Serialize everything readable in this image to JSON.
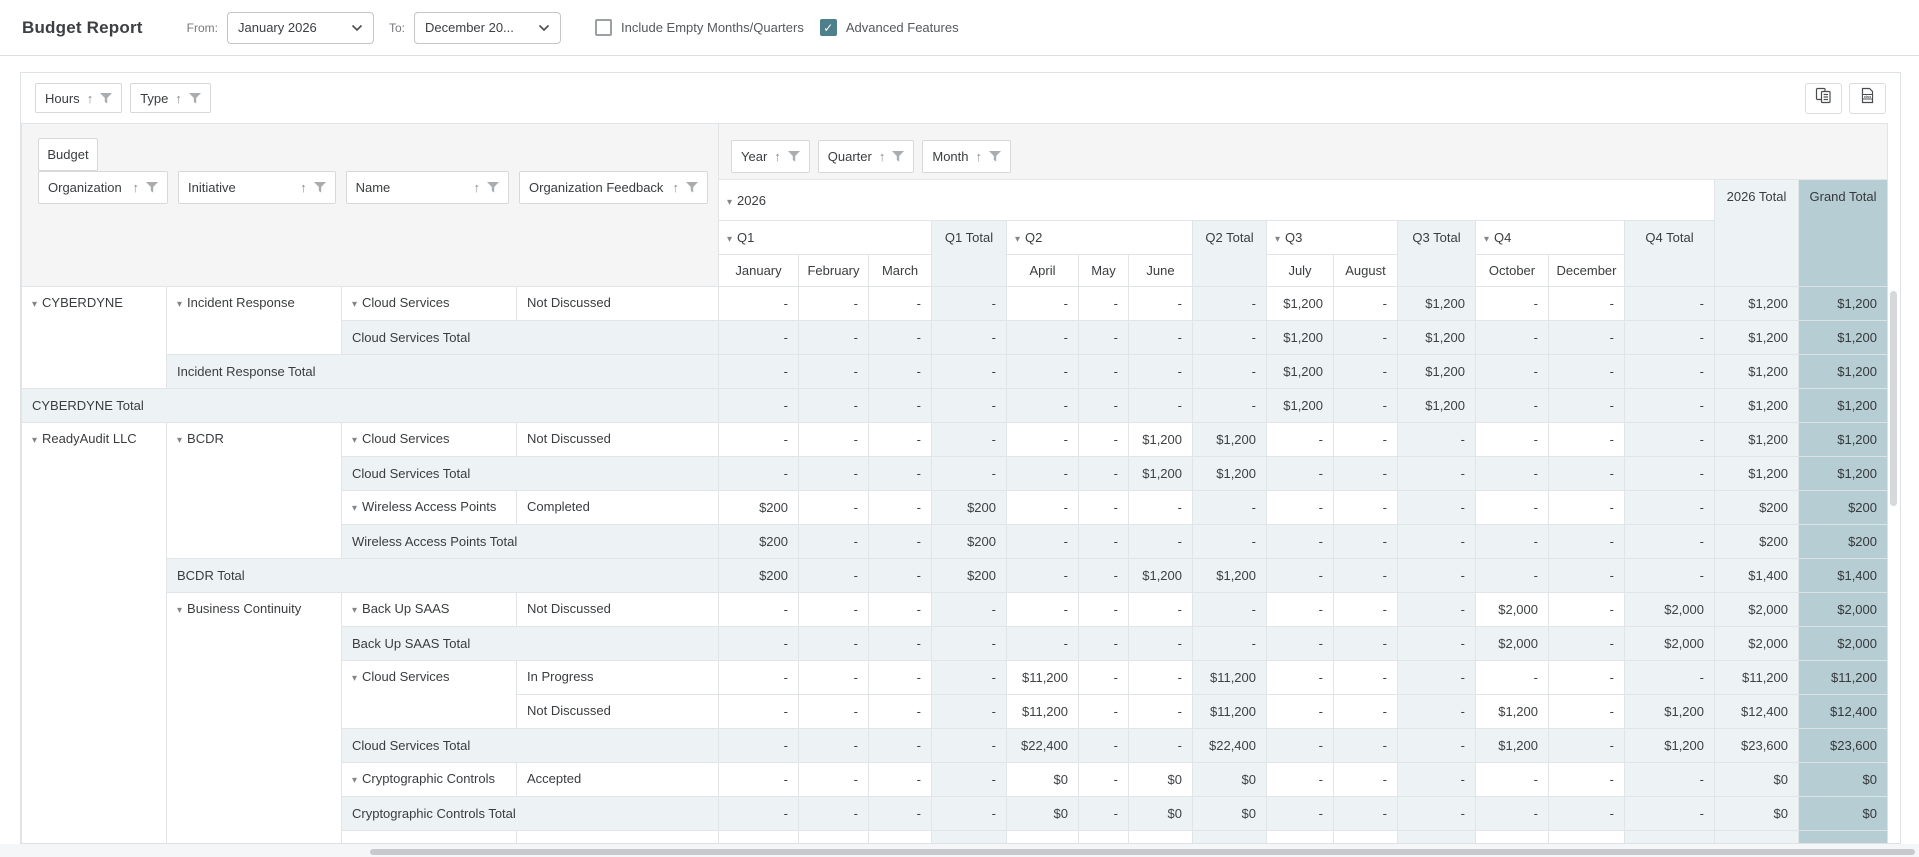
{
  "toolbar": {
    "title": "Budget Report",
    "from_label": "From:",
    "from_value": "January 2026",
    "to_label": "To:",
    "to_value": "December 20...",
    "include_empty_label": "Include Empty Months/Quarters",
    "include_empty_checked": false,
    "advanced_label": "Advanced Features",
    "advanced_checked": true,
    "checkmark": "✓"
  },
  "grid_toolbar": {
    "value_fields": [
      "Hours",
      "Type"
    ],
    "icons": [
      "copy-icon",
      "excel-export-icon"
    ]
  },
  "grouping": {
    "row_area_field": "Budget",
    "column_fields": [
      "Year",
      "Quarter",
      "Month"
    ],
    "row_fields": [
      "Organization",
      "Initiative",
      "Name",
      "Organization Feedback"
    ]
  },
  "colors": {
    "grand_total_bg": "#b5cdd3",
    "subtotal_bg": "#edf2f4",
    "checkbox_checked": "#4d7f8c",
    "header_band_bg": "#f5f5f5"
  },
  "pivot": {
    "year": "2026",
    "year_total": "2026 Total",
    "grand_total": "Grand Total",
    "quarters": [
      {
        "label": "Q1",
        "total": "Q1 Total",
        "months": [
          "January",
          "February",
          "March"
        ]
      },
      {
        "label": "Q2",
        "total": "Q2 Total",
        "months": [
          "April",
          "May",
          "June"
        ]
      },
      {
        "label": "Q3",
        "total": "Q3 Total",
        "months": [
          "July",
          "August"
        ]
      },
      {
        "label": "Q4",
        "total": "Q4 Total",
        "months": [
          "October",
          "December"
        ]
      }
    ],
    "rows": [
      {
        "row_type": "detail",
        "cells": [
          {
            "label": "CYBERDYNE",
            "span_rows": 3,
            "expandable": true
          },
          {
            "label": "Incident Response",
            "span_rows": 2,
            "expandable": true
          },
          {
            "label": "Cloud Services",
            "expandable": true
          },
          {
            "label": "Not Discussed"
          }
        ],
        "values": [
          "-",
          "-",
          "-",
          "-",
          "-",
          "-",
          "-",
          "-",
          "$1,200",
          "-",
          "$1,200",
          "-",
          "-",
          "-",
          "$1,200",
          "$1,200"
        ]
      },
      {
        "row_type": "total",
        "cells": [
          {
            "label": "Cloud Services Total",
            "span_cols": 2,
            "is_total": true
          }
        ],
        "values": [
          "-",
          "-",
          "-",
          "-",
          "-",
          "-",
          "-",
          "-",
          "$1,200",
          "-",
          "$1,200",
          "-",
          "-",
          "-",
          "$1,200",
          "$1,200"
        ]
      },
      {
        "row_type": "total",
        "cells": [
          {
            "label": "Incident Response Total",
            "span_cols": 3,
            "is_total": true
          }
        ],
        "values": [
          "-",
          "-",
          "-",
          "-",
          "-",
          "-",
          "-",
          "-",
          "$1,200",
          "-",
          "$1,200",
          "-",
          "-",
          "-",
          "$1,200",
          "$1,200"
        ]
      },
      {
        "row_type": "total",
        "cells": [
          {
            "label": "CYBERDYNE Total",
            "span_cols": 4,
            "is_total": true
          }
        ],
        "values": [
          "-",
          "-",
          "-",
          "-",
          "-",
          "-",
          "-",
          "-",
          "$1,200",
          "-",
          "$1,200",
          "-",
          "-",
          "-",
          "$1,200",
          "$1,200"
        ]
      },
      {
        "row_type": "detail",
        "cells": [
          {
            "label": "ReadyAudit LLC",
            "span_rows": 13,
            "expandable": true
          },
          {
            "label": "BCDR",
            "span_rows": 4,
            "expandable": true
          },
          {
            "label": "Cloud Services",
            "expandable": true
          },
          {
            "label": "Not Discussed"
          }
        ],
        "values": [
          "-",
          "-",
          "-",
          "-",
          "-",
          "-",
          "$1,200",
          "$1,200",
          "-",
          "-",
          "-",
          "-",
          "-",
          "-",
          "$1,200",
          "$1,200"
        ]
      },
      {
        "row_type": "total",
        "cells": [
          {
            "label": "Cloud Services Total",
            "span_cols": 2,
            "is_total": true
          }
        ],
        "values": [
          "-",
          "-",
          "-",
          "-",
          "-",
          "-",
          "$1,200",
          "$1,200",
          "-",
          "-",
          "-",
          "-",
          "-",
          "-",
          "$1,200",
          "$1,200"
        ]
      },
      {
        "row_type": "detail",
        "cells": [
          {
            "label": "Wireless Access Points",
            "expandable": true
          },
          {
            "label": "Completed"
          }
        ],
        "values": [
          "$200",
          "-",
          "-",
          "$200",
          "-",
          "-",
          "-",
          "-",
          "-",
          "-",
          "-",
          "-",
          "-",
          "-",
          "$200",
          "$200"
        ]
      },
      {
        "row_type": "total",
        "cells": [
          {
            "label": "Wireless Access Points Total",
            "span_cols": 2,
            "is_total": true
          }
        ],
        "values": [
          "$200",
          "-",
          "-",
          "$200",
          "-",
          "-",
          "-",
          "-",
          "-",
          "-",
          "-",
          "-",
          "-",
          "-",
          "$200",
          "$200"
        ]
      },
      {
        "row_type": "total",
        "cells": [
          {
            "label": "BCDR Total",
            "span_cols": 3,
            "is_total": true
          }
        ],
        "values": [
          "$200",
          "-",
          "-",
          "$200",
          "-",
          "-",
          "$1,200",
          "$1,200",
          "-",
          "-",
          "-",
          "-",
          "-",
          "-",
          "$1,400",
          "$1,400"
        ]
      },
      {
        "row_type": "detail",
        "cells": [
          {
            "label": "Business Continuity",
            "span_rows": 8,
            "expandable": true
          },
          {
            "label": "Back Up SAAS",
            "expandable": true
          },
          {
            "label": "Not Discussed"
          }
        ],
        "values": [
          "-",
          "-",
          "-",
          "-",
          "-",
          "-",
          "-",
          "-",
          "-",
          "-",
          "-",
          "$2,000",
          "-",
          "$2,000",
          "$2,000",
          "$2,000"
        ]
      },
      {
        "row_type": "total",
        "cells": [
          {
            "label": "Back Up SAAS Total",
            "span_cols": 2,
            "is_total": true
          }
        ],
        "values": [
          "-",
          "-",
          "-",
          "-",
          "-",
          "-",
          "-",
          "-",
          "-",
          "-",
          "-",
          "$2,000",
          "-",
          "$2,000",
          "$2,000",
          "$2,000"
        ]
      },
      {
        "row_type": "detail",
        "cells": [
          {
            "label": "Cloud Services",
            "span_rows": 2,
            "expandable": true
          },
          {
            "label": "In Progress"
          }
        ],
        "values": [
          "-",
          "-",
          "-",
          "-",
          "$11,200",
          "-",
          "-",
          "$11,200",
          "-",
          "-",
          "-",
          "-",
          "-",
          "-",
          "$11,200",
          "$11,200"
        ]
      },
      {
        "row_type": "detail",
        "cells": [
          {
            "label": "Not Discussed"
          }
        ],
        "values": [
          "-",
          "-",
          "-",
          "-",
          "$11,200",
          "-",
          "-",
          "$11,200",
          "-",
          "-",
          "-",
          "$1,200",
          "-",
          "$1,200",
          "$12,400",
          "$12,400"
        ]
      },
      {
        "row_type": "total",
        "cells": [
          {
            "label": "Cloud Services Total",
            "span_cols": 2,
            "is_total": true
          }
        ],
        "values": [
          "-",
          "-",
          "-",
          "-",
          "$22,400",
          "-",
          "-",
          "$22,400",
          "-",
          "-",
          "-",
          "$1,200",
          "-",
          "$1,200",
          "$23,600",
          "$23,600"
        ]
      },
      {
        "row_type": "detail",
        "cells": [
          {
            "label": "Cryptographic Controls",
            "expandable": true
          },
          {
            "label": "Accepted"
          }
        ],
        "values": [
          "-",
          "-",
          "-",
          "-",
          "$0",
          "-",
          "$0",
          "$0",
          "-",
          "-",
          "-",
          "-",
          "-",
          "-",
          "$0",
          "$0"
        ]
      },
      {
        "row_type": "total",
        "cells": [
          {
            "label": "Cryptographic Controls Total",
            "span_cols": 2,
            "is_total": true
          }
        ],
        "values": [
          "-",
          "-",
          "-",
          "-",
          "$0",
          "-",
          "$0",
          "$0",
          "-",
          "-",
          "-",
          "-",
          "-",
          "-",
          "$0",
          "$0"
        ]
      },
      {
        "row_type": "detail",
        "cells": [
          {
            "label": ""
          },
          {
            "label": ""
          }
        ],
        "values": [
          "",
          "",
          "",
          "",
          "",
          "",
          "",
          "",
          "",
          "",
          "",
          "",
          "",
          "",
          "",
          ""
        ]
      }
    ]
  }
}
